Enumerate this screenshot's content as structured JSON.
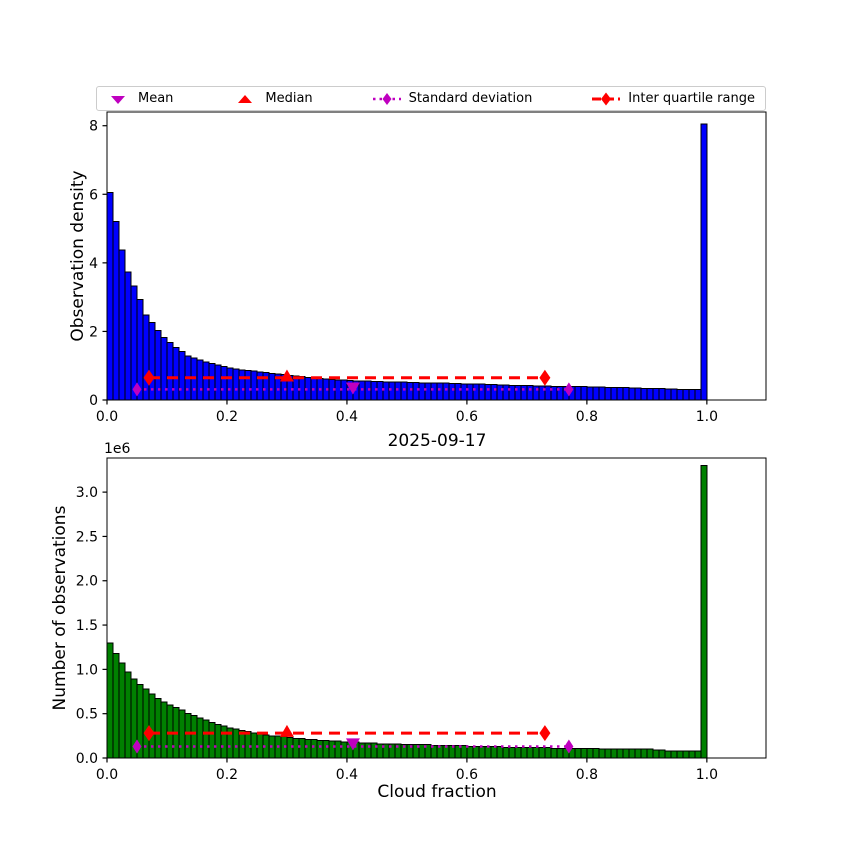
{
  "figure": {
    "background": "#ffffff"
  },
  "colors": {
    "mean": "#bf00bf",
    "median": "#ff0000",
    "std": "#bf00bf",
    "iqr": "#ff0000",
    "top_bar": "#0000ff",
    "bottom_bar": "#008000",
    "bar_edge": "#000000",
    "legend_border": "#cccccc"
  },
  "legend": {
    "items": [
      {
        "label": "Mean",
        "marker": "triangle-down",
        "color": "#bf00bf",
        "linestyle": "none"
      },
      {
        "label": "Median",
        "marker": "triangle-up",
        "color": "#ff0000",
        "linestyle": "none"
      },
      {
        "label": "Standard deviation",
        "marker": "diamond",
        "color": "#bf00bf",
        "linestyle": "dotted"
      },
      {
        "label": "Inter quartile range",
        "marker": "diamond",
        "color": "#ff0000",
        "linestyle": "dashed"
      }
    ]
  },
  "chart_data": [
    {
      "type": "bar",
      "subtype": "histogram",
      "ylabel": "Observation density",
      "bar_color": "#0000ff",
      "edge_color": "#000000",
      "bin_start": 0.0,
      "bin_width": 0.01,
      "xlim": [
        0,
        1.0986
      ],
      "ylim": [
        0,
        8.4
      ],
      "xticks": {
        "values": [
          0.0,
          0.2,
          0.4,
          0.6,
          0.8,
          1.0
        ],
        "labels": [
          "0.0",
          "0.2",
          "0.4",
          "0.6",
          "0.8",
          "1.0"
        ]
      },
      "yticks": {
        "values": [
          0,
          2,
          4,
          6,
          8
        ],
        "labels": [
          "0",
          "2",
          "4",
          "6",
          "8"
        ]
      },
      "values": [
        6.05,
        5.2,
        4.37,
        3.74,
        3.32,
        2.93,
        2.48,
        2.26,
        2.02,
        1.82,
        1.67,
        1.53,
        1.41,
        1.29,
        1.22,
        1.16,
        1.11,
        1.06,
        1.02,
        0.98,
        0.94,
        0.91,
        0.88,
        0.86,
        0.84,
        0.82,
        0.8,
        0.78,
        0.76,
        0.74,
        0.72,
        0.7,
        0.68,
        0.66,
        0.64,
        0.62,
        0.61,
        0.6,
        0.59,
        0.58,
        0.57,
        0.56,
        0.55,
        0.55,
        0.54,
        0.54,
        0.53,
        0.53,
        0.52,
        0.52,
        0.51,
        0.51,
        0.5,
        0.5,
        0.5,
        0.49,
        0.49,
        0.48,
        0.48,
        0.47,
        0.47,
        0.46,
        0.46,
        0.45,
        0.45,
        0.44,
        0.44,
        0.43,
        0.43,
        0.42,
        0.42,
        0.41,
        0.41,
        0.41,
        0.4,
        0.4,
        0.4,
        0.39,
        0.39,
        0.39,
        0.38,
        0.38,
        0.38,
        0.37,
        0.37,
        0.36,
        0.36,
        0.35,
        0.35,
        0.34,
        0.34,
        0.33,
        0.33,
        0.32,
        0.32,
        0.31,
        0.31,
        0.3,
        0.3,
        8.05
      ],
      "stats": {
        "mean": {
          "x": 0.41,
          "y": 0.35
        },
        "median": {
          "x": 0.3,
          "y": 0.7
        },
        "std": {
          "x1": 0.05,
          "x2": 0.77,
          "y": 0.31
        },
        "iqr": {
          "x1": 0.07,
          "x2": 0.73,
          "y": 0.65
        }
      }
    },
    {
      "type": "bar",
      "subtype": "histogram",
      "title": "2025-09-17",
      "xlabel": "Cloud fraction",
      "ylabel": "Number of observations",
      "offset_text": "1e6",
      "unit_scale": 1000000,
      "bar_color": "#008000",
      "edge_color": "#000000",
      "bin_start": 0.0,
      "bin_width": 0.01,
      "xlim": [
        0,
        1.0986
      ],
      "ylim": [
        0,
        3.385
      ],
      "xticks": {
        "values": [
          0.0,
          0.2,
          0.4,
          0.6,
          0.8,
          1.0
        ],
        "labels": [
          "0.0",
          "0.2",
          "0.4",
          "0.6",
          "0.8",
          "1.0"
        ]
      },
      "yticks": {
        "values": [
          0,
          0.5,
          1.0,
          1.5,
          2.0,
          2.5,
          3.0
        ],
        "labels": [
          "0.0",
          "0.5",
          "1.0",
          "1.5",
          "2.0",
          "2.5",
          "3.0"
        ]
      },
      "values": [
        1.3,
        1.18,
        1.07,
        0.97,
        0.89,
        0.83,
        0.78,
        0.72,
        0.67,
        0.63,
        0.6,
        0.57,
        0.54,
        0.5,
        0.48,
        0.45,
        0.43,
        0.4,
        0.38,
        0.36,
        0.34,
        0.33,
        0.31,
        0.3,
        0.28,
        0.27,
        0.26,
        0.25,
        0.25,
        0.24,
        0.23,
        0.22,
        0.22,
        0.21,
        0.21,
        0.2,
        0.2,
        0.19,
        0.19,
        0.18,
        0.18,
        0.18,
        0.17,
        0.17,
        0.17,
        0.16,
        0.16,
        0.16,
        0.16,
        0.15,
        0.15,
        0.15,
        0.15,
        0.15,
        0.14,
        0.14,
        0.14,
        0.14,
        0.14,
        0.14,
        0.13,
        0.13,
        0.13,
        0.13,
        0.13,
        0.13,
        0.12,
        0.12,
        0.12,
        0.12,
        0.12,
        0.12,
        0.12,
        0.12,
        0.11,
        0.11,
        0.11,
        0.11,
        0.11,
        0.11,
        0.11,
        0.11,
        0.1,
        0.1,
        0.1,
        0.1,
        0.1,
        0.1,
        0.1,
        0.1,
        0.1,
        0.09,
        0.09,
        0.08,
        0.08,
        0.08,
        0.08,
        0.08,
        0.08,
        3.3
      ],
      "stats": {
        "mean": {
          "x": 0.41,
          "y": 0.16
        },
        "median": {
          "x": 0.3,
          "y": 0.3
        },
        "std": {
          "x1": 0.05,
          "x2": 0.77,
          "y": 0.13
        },
        "iqr": {
          "x1": 0.07,
          "x2": 0.73,
          "y": 0.28
        }
      }
    }
  ]
}
